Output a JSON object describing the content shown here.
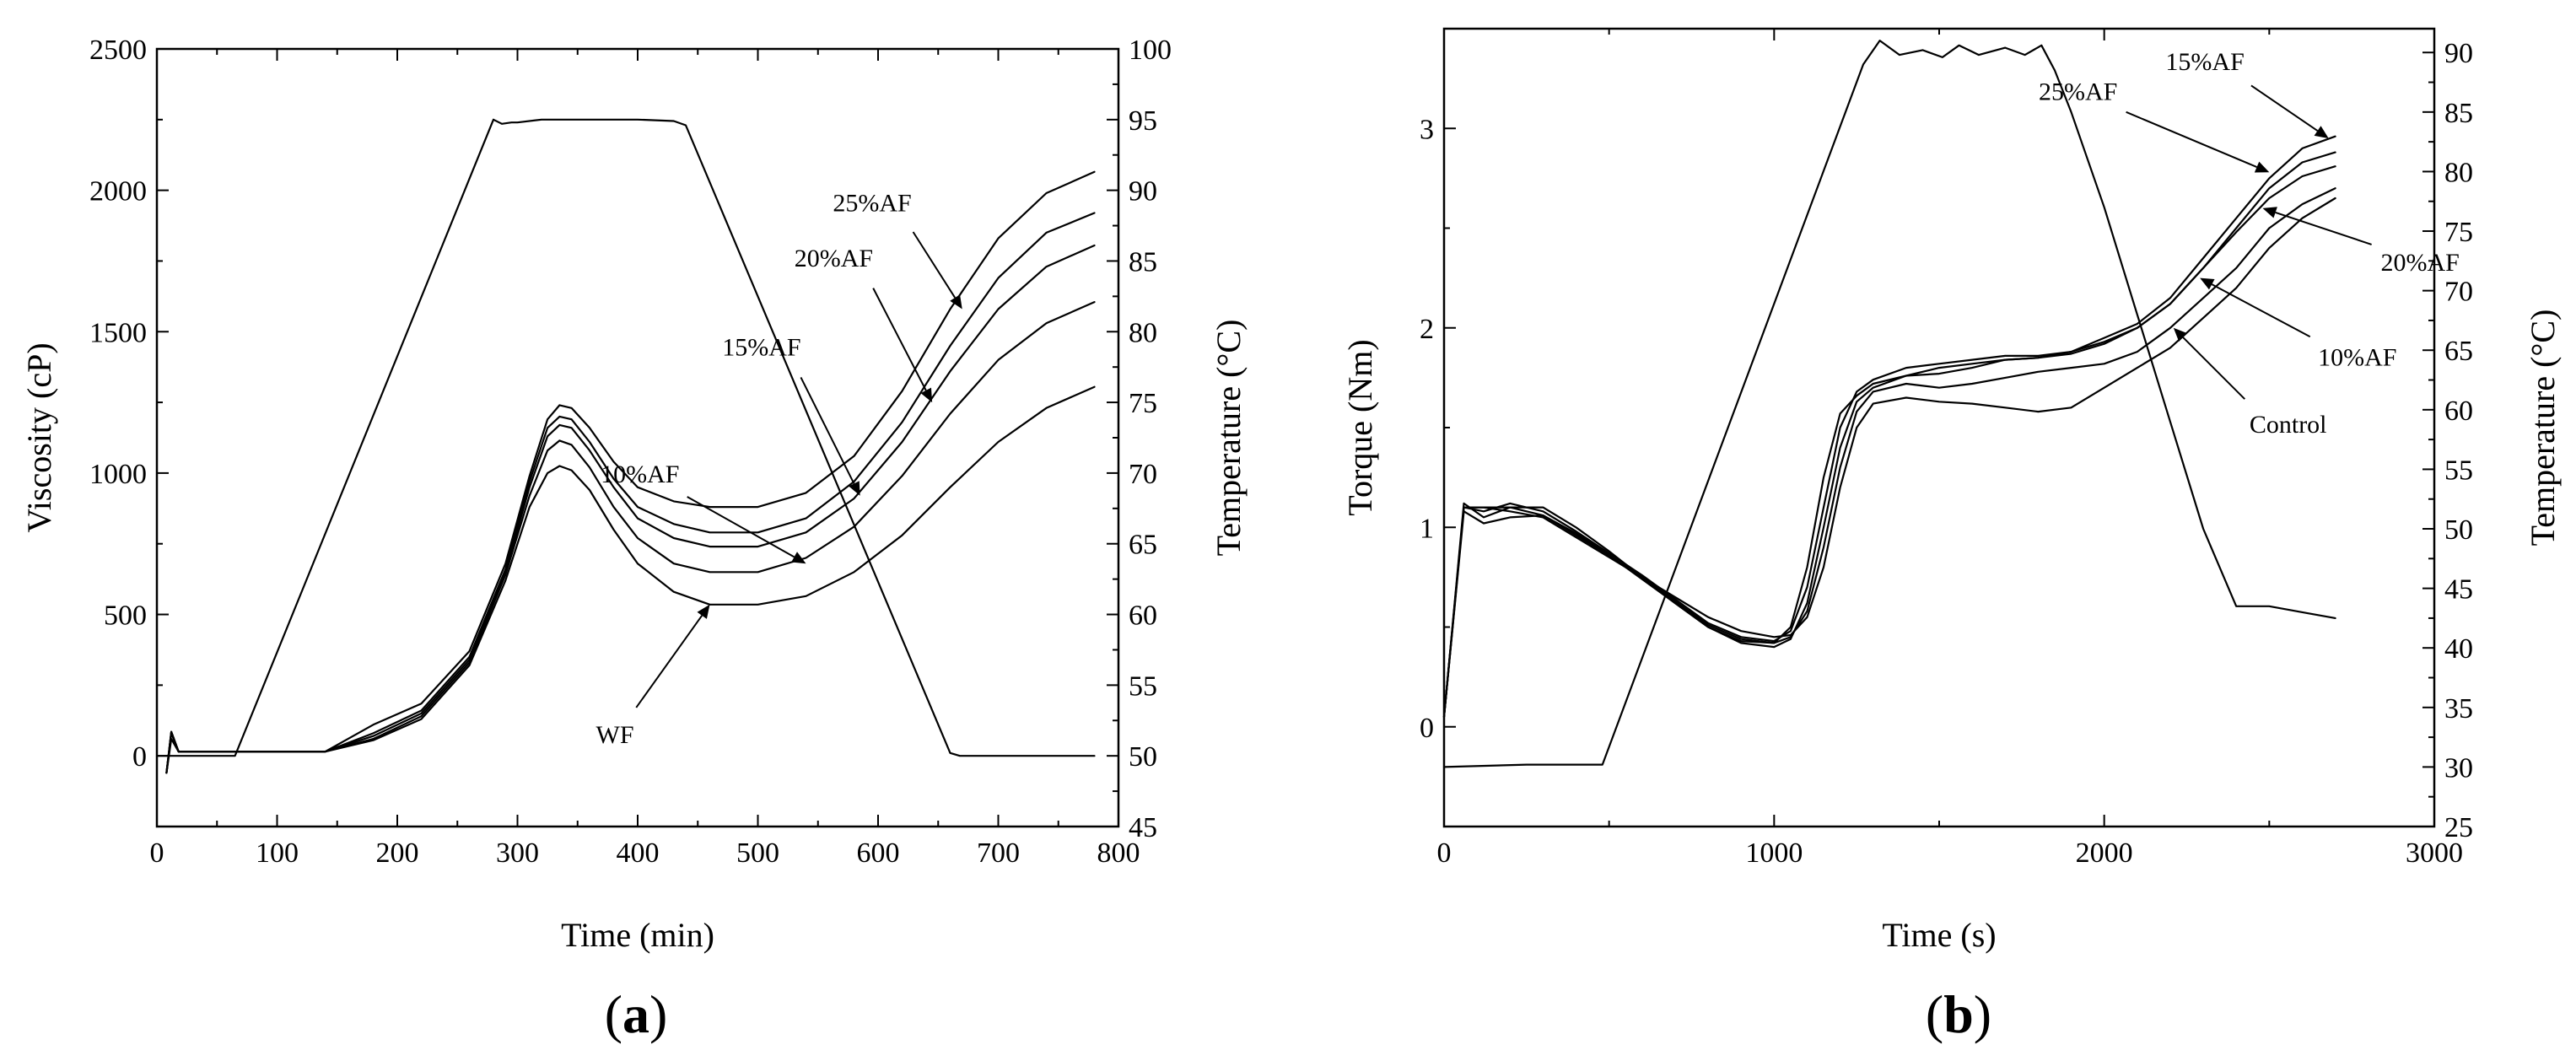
{
  "figure": {
    "panel_a_label": "a",
    "panel_b_label": "b"
  },
  "chart_data": [
    {
      "id": "a",
      "type": "line",
      "panel_label": "(a)",
      "xlabel": "Time (min)",
      "ylabel": "Viscosity (cP)",
      "y2label": "Temperature (°C)",
      "xlim": [
        0,
        800
      ],
      "ylim": [
        -250,
        2500
      ],
      "y2lim": [
        45,
        100
      ],
      "xticks": [
        0,
        100,
        200,
        300,
        400,
        500,
        600,
        700,
        800
      ],
      "yticks": [
        0,
        500,
        1000,
        1500,
        2000,
        2500
      ],
      "y2ticks": [
        45,
        50,
        55,
        60,
        65,
        70,
        75,
        80,
        85,
        90,
        95,
        100
      ],
      "series": [
        {
          "name": "WF",
          "axis": "y",
          "x": [
            8,
            12,
            18,
            25,
            60,
            100,
            140,
            180,
            220,
            260,
            290,
            310,
            325,
            335,
            345,
            360,
            380,
            400,
            430,
            460,
            500,
            540,
            580,
            620,
            660,
            700,
            740,
            780
          ],
          "y": [
            -60,
            60,
            15,
            15,
            15,
            15,
            15,
            55,
            130,
            320,
            620,
            880,
            1000,
            1025,
            1010,
            940,
            800,
            680,
            580,
            535,
            535,
            565,
            650,
            780,
            950,
            1110,
            1230,
            1305
          ]
        },
        {
          "name": "10%AF",
          "axis": "y",
          "x": [
            8,
            12,
            18,
            25,
            60,
            100,
            140,
            180,
            220,
            260,
            290,
            310,
            325,
            335,
            345,
            360,
            380,
            400,
            430,
            460,
            500,
            540,
            580,
            620,
            660,
            700,
            740,
            780
          ],
          "y": [
            -60,
            80,
            15,
            15,
            15,
            15,
            15,
            60,
            140,
            330,
            640,
            920,
            1080,
            1115,
            1100,
            1020,
            880,
            770,
            680,
            650,
            650,
            700,
            810,
            990,
            1210,
            1400,
            1530,
            1605
          ]
        },
        {
          "name": "15%AF",
          "axis": "y",
          "x": [
            8,
            12,
            18,
            25,
            60,
            100,
            140,
            180,
            220,
            260,
            290,
            310,
            325,
            335,
            345,
            360,
            380,
            400,
            430,
            460,
            500,
            540,
            580,
            620,
            660,
            700,
            740,
            780
          ],
          "y": [
            -60,
            85,
            15,
            15,
            15,
            15,
            15,
            70,
            150,
            340,
            650,
            950,
            1130,
            1170,
            1160,
            1080,
            950,
            840,
            770,
            740,
            740,
            790,
            910,
            1110,
            1360,
            1580,
            1730,
            1805
          ]
        },
        {
          "name": "20%AF",
          "axis": "y",
          "x": [
            8,
            12,
            18,
            25,
            60,
            100,
            140,
            180,
            220,
            260,
            290,
            310,
            325,
            335,
            345,
            360,
            380,
            400,
            430,
            460,
            500,
            540,
            580,
            620,
            660,
            700,
            740,
            780
          ],
          "y": [
            -60,
            85,
            15,
            15,
            15,
            15,
            15,
            80,
            160,
            350,
            660,
            970,
            1160,
            1200,
            1190,
            1110,
            980,
            880,
            820,
            790,
            790,
            840,
            970,
            1180,
            1450,
            1690,
            1850,
            1920
          ]
        },
        {
          "name": "25%AF",
          "axis": "y",
          "x": [
            8,
            12,
            18,
            25,
            60,
            100,
            140,
            180,
            220,
            260,
            290,
            310,
            325,
            335,
            345,
            360,
            380,
            400,
            430,
            460,
            500,
            540,
            580,
            620,
            660,
            700,
            740,
            780
          ],
          "y": [
            -60,
            85,
            15,
            15,
            15,
            15,
            15,
            110,
            185,
            370,
            680,
            990,
            1190,
            1240,
            1230,
            1160,
            1040,
            950,
            900,
            880,
            880,
            930,
            1060,
            1290,
            1580,
            1830,
            1990,
            2065
          ]
        },
        {
          "name": "Temperature",
          "axis": "y2",
          "x": [
            0,
            65,
            280,
            287,
            295,
            300,
            320,
            400,
            430,
            440,
            660,
            668,
            700,
            780
          ],
          "y": [
            50,
            50,
            95,
            94.7,
            94.8,
            94.8,
            95,
            95,
            94.9,
            94.6,
            50.2,
            50,
            50,
            50
          ]
        }
      ],
      "annotations": [
        {
          "text": "25%AF",
          "series": "25%AF",
          "target": [
            670,
            1580
          ]
        },
        {
          "text": "20%AF",
          "series": "20%AF",
          "target": [
            645,
            1250
          ]
        },
        {
          "text": "15%AF",
          "series": "15%AF",
          "target": [
            585,
            920
          ]
        },
        {
          "text": "10%AF",
          "series": "10%AF",
          "target": [
            540,
            680
          ]
        },
        {
          "text": "WF",
          "series": "WF",
          "target": [
            460,
            535
          ]
        }
      ]
    },
    {
      "id": "b",
      "type": "line",
      "panel_label": "(b)",
      "xlabel": "Time (s)",
      "ylabel": "Torque (Nm)",
      "y2label": "Temperature (°C)",
      "xlim": [
        0,
        3000
      ],
      "ylim": [
        -0.5,
        3.5
      ],
      "y2lim": [
        25,
        92
      ],
      "xticks": [
        0,
        1000,
        2000,
        3000
      ],
      "yticks": [
        0,
        1,
        2,
        3
      ],
      "y2ticks": [
        25,
        30,
        35,
        40,
        45,
        50,
        55,
        60,
        65,
        70,
        75,
        80,
        85,
        90
      ],
      "series": [
        {
          "name": "Control",
          "axis": "y",
          "x": [
            0,
            60,
            120,
            200,
            300,
            400,
            500,
            600,
            700,
            800,
            900,
            1000,
            1050,
            1100,
            1150,
            1200,
            1250,
            1300,
            1400,
            1500,
            1600,
            1700,
            1800,
            1900,
            2000,
            2100,
            2200,
            2300,
            2400,
            2500,
            2600,
            2700
          ],
          "y": [
            0.05,
            1.1,
            1.1,
            1.08,
            1.05,
            0.95,
            0.85,
            0.75,
            0.65,
            0.55,
            0.48,
            0.45,
            0.46,
            0.55,
            0.8,
            1.2,
            1.5,
            1.62,
            1.65,
            1.63,
            1.62,
            1.6,
            1.58,
            1.6,
            1.7,
            1.8,
            1.9,
            2.05,
            2.2,
            2.4,
            2.55,
            2.65
          ]
        },
        {
          "name": "10%AF",
          "axis": "y",
          "x": [
            0,
            60,
            120,
            200,
            300,
            400,
            500,
            600,
            700,
            800,
            900,
            1000,
            1050,
            1100,
            1150,
            1200,
            1250,
            1300,
            1400,
            1500,
            1600,
            1700,
            1800,
            1900,
            2000,
            2100,
            2200,
            2300,
            2400,
            2500,
            2600,
            2700
          ],
          "y": [
            0.05,
            1.12,
            1.05,
            1.1,
            1.1,
            1.0,
            0.88,
            0.75,
            0.62,
            0.5,
            0.43,
            0.42,
            0.45,
            0.58,
            0.9,
            1.3,
            1.58,
            1.68,
            1.72,
            1.7,
            1.72,
            1.75,
            1.78,
            1.8,
            1.82,
            1.88,
            2.0,
            2.15,
            2.3,
            2.5,
            2.62,
            2.7
          ]
        },
        {
          "name": "15%AF",
          "axis": "y",
          "x": [
            0,
            60,
            120,
            200,
            300,
            400,
            500,
            600,
            700,
            800,
            900,
            1000,
            1050,
            1100,
            1150,
            1200,
            1250,
            1300,
            1400,
            1500,
            1600,
            1700,
            1800,
            1900,
            2000,
            2100,
            2200,
            2300,
            2400,
            2500,
            2600,
            2700
          ],
          "y": [
            0.05,
            1.1,
            1.08,
            1.12,
            1.08,
            0.98,
            0.87,
            0.76,
            0.64,
            0.52,
            0.45,
            0.43,
            0.48,
            0.7,
            1.1,
            1.5,
            1.68,
            1.74,
            1.8,
            1.82,
            1.84,
            1.86,
            1.86,
            1.88,
            1.95,
            2.02,
            2.15,
            2.35,
            2.55,
            2.75,
            2.9,
            2.96
          ]
        },
        {
          "name": "20%AF",
          "axis": "y",
          "x": [
            0,
            60,
            120,
            200,
            300,
            400,
            500,
            600,
            700,
            800,
            900,
            1000,
            1050,
            1100,
            1150,
            1200,
            1250,
            1300,
            1400,
            1500,
            1600,
            1700,
            1800,
            1900,
            2000,
            2100,
            2200,
            2300,
            2400,
            2500,
            2600,
            2700
          ],
          "y": [
            0.05,
            1.08,
            1.02,
            1.05,
            1.06,
            0.97,
            0.86,
            0.74,
            0.62,
            0.5,
            0.42,
            0.4,
            0.44,
            0.62,
            1.0,
            1.4,
            1.63,
            1.7,
            1.76,
            1.77,
            1.8,
            1.84,
            1.85,
            1.88,
            1.93,
            2.0,
            2.12,
            2.3,
            2.48,
            2.65,
            2.76,
            2.81
          ]
        },
        {
          "name": "25%AF",
          "axis": "y",
          "x": [
            0,
            60,
            120,
            200,
            300,
            400,
            500,
            600,
            700,
            800,
            900,
            1000,
            1050,
            1100,
            1150,
            1200,
            1250,
            1300,
            1400,
            1500,
            1600,
            1700,
            1800,
            1900,
            2000,
            2100,
            2200,
            2300,
            2400,
            2500,
            2600,
            2700
          ],
          "y": [
            0.05,
            1.1,
            1.1,
            1.1,
            1.06,
            0.96,
            0.86,
            0.75,
            0.63,
            0.51,
            0.44,
            0.42,
            0.5,
            0.8,
            1.25,
            1.57,
            1.66,
            1.72,
            1.76,
            1.8,
            1.82,
            1.84,
            1.85,
            1.87,
            1.92,
            2.0,
            2.12,
            2.3,
            2.5,
            2.7,
            2.83,
            2.88
          ]
        },
        {
          "name": "Temperature",
          "axis": "y2",
          "x": [
            0,
            250,
            480,
            1270,
            1320,
            1380,
            1450,
            1510,
            1560,
            1620,
            1700,
            1760,
            1810,
            1850,
            1900,
            2000,
            2100,
            2200,
            2300,
            2400,
            2500,
            2600,
            2700
          ],
          "y": [
            30,
            30.2,
            30.2,
            89,
            91,
            89.8,
            90.2,
            89.6,
            90.6,
            89.8,
            90.4,
            89.8,
            90.6,
            88.5,
            85,
            77,
            68,
            59,
            50,
            43.5,
            43.5,
            43,
            42.5
          ]
        }
      ],
      "annotations": [
        {
          "text": "15%AF",
          "series": "15%AF",
          "target": [
            2680,
            2.95
          ]
        },
        {
          "text": "25%AF",
          "series": "25%AF",
          "target": [
            2500,
            2.78
          ]
        },
        {
          "text": "20%AF",
          "series": "20%AF",
          "target": [
            2480,
            2.6
          ]
        },
        {
          "text": "10%AF",
          "series": "10%AF",
          "target": [
            2290,
            2.25
          ]
        },
        {
          "text": "Control",
          "series": "Control",
          "target": [
            2210,
            2.0
          ]
        }
      ]
    }
  ]
}
